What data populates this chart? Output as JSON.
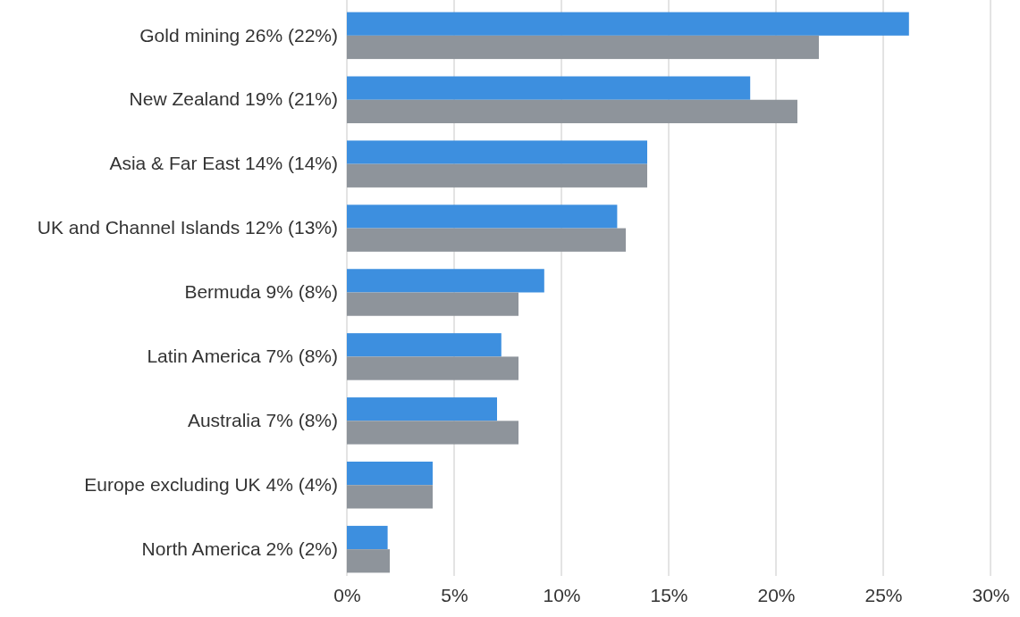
{
  "chart_data": {
    "type": "bar",
    "orientation": "horizontal",
    "categories": [
      "Gold mining 26% (22%)",
      "New Zealand 19% (21%)",
      "Asia & Far East 14% (14%)",
      "UK and Channel Islands 12% (13%)",
      "Bermuda 9% (8%)",
      "Latin America 7% (8%)",
      "Australia 7% (8%)",
      "Europe excluding UK 4% (4%)",
      "North America 2% (2%)"
    ],
    "series": [
      {
        "color": "#3d8fdf",
        "values": [
          26.2,
          18.8,
          14.0,
          12.6,
          9.2,
          7.2,
          7.0,
          4.0,
          1.9
        ]
      },
      {
        "color": "#8e949b",
        "values": [
          22.0,
          21.0,
          14.0,
          13.0,
          8.0,
          8.0,
          8.0,
          4.0,
          2.0
        ]
      }
    ],
    "xlim": [
      0,
      30
    ],
    "xticks": [
      {
        "value": 0,
        "label": "0%"
      },
      {
        "value": 5,
        "label": "5%"
      },
      {
        "value": 10,
        "label": "10%"
      },
      {
        "value": 15,
        "label": "15%"
      },
      {
        "value": 20,
        "label": "20%"
      },
      {
        "value": 25,
        "label": "25%"
      },
      {
        "value": 30,
        "label": "30%"
      }
    ],
    "grid": "x"
  }
}
